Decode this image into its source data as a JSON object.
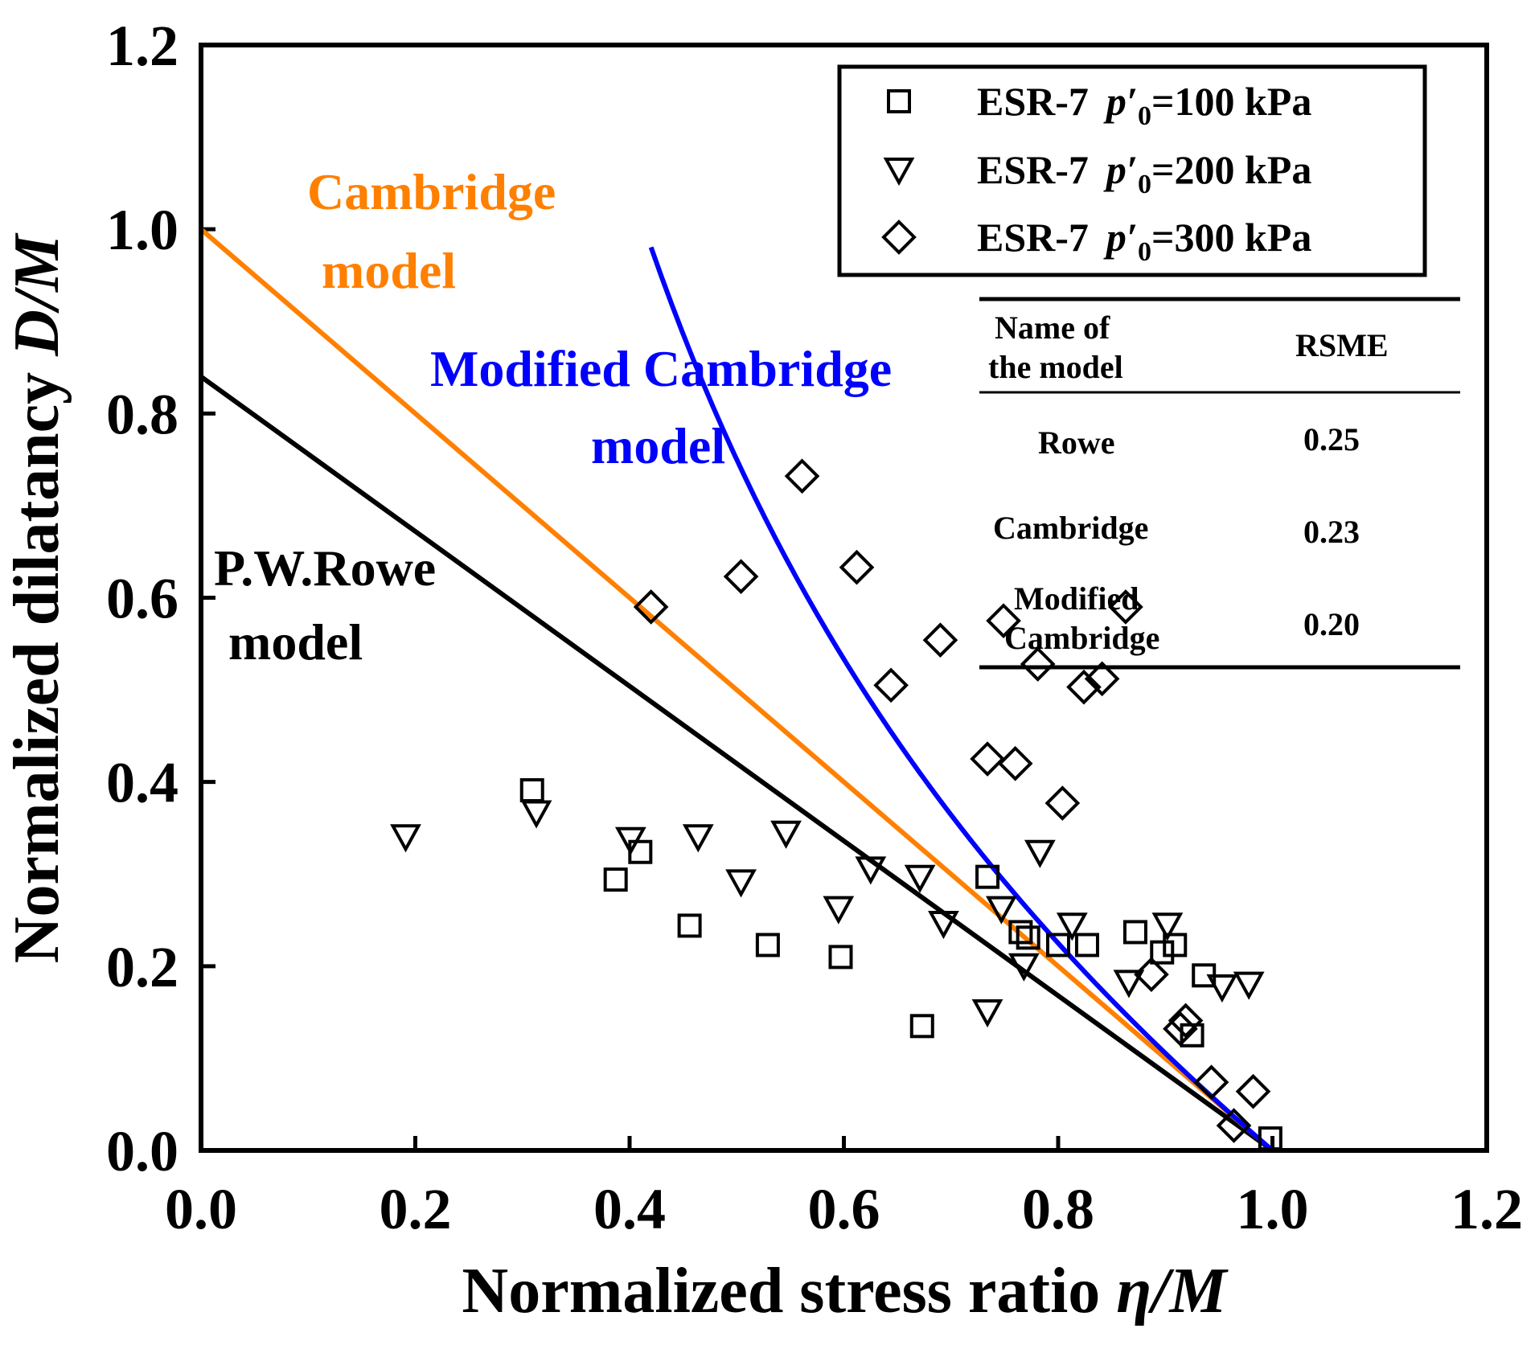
{
  "chart_data": {
    "type": "scatter",
    "xlabel": "Normalized stress ratio ",
    "xlabel_italic": "η/M",
    "ylabel": "Normalized dilatancy ",
    "ylabel_italic": "D/M",
    "xlim": [
      0,
      1.2
    ],
    "ylim": [
      0,
      1.2
    ],
    "xticks": [
      "0.0",
      "0.2",
      "0.4",
      "0.6",
      "0.8",
      "1.0",
      "1.2"
    ],
    "yticks": [
      "0.0",
      "0.2",
      "0.4",
      "0.6",
      "0.8",
      "1.0",
      "1.2"
    ],
    "grid": false,
    "legend_position": "top-right",
    "series": [
      {
        "name": "ESR-7 p'0=100 kPa",
        "label_prefix": "ESR-7",
        "label_p": "p′",
        "label_sub": "0",
        "label_suffix": "=100 kPa",
        "marker": "square",
        "color": "#000000",
        "x": [
          0.309,
          0.387,
          0.41,
          0.456,
          0.529,
          0.597,
          0.673,
          0.734,
          0.765,
          0.772,
          0.8,
          0.827,
          0.872,
          0.897,
          0.909,
          0.925,
          0.936,
          0.998
        ],
        "y": [
          0.391,
          0.294,
          0.324,
          0.244,
          0.223,
          0.21,
          0.135,
          0.297,
          0.237,
          0.231,
          0.223,
          0.223,
          0.237,
          0.215,
          0.223,
          0.125,
          0.19,
          0.013
        ]
      },
      {
        "name": "ESR-7 p'0=200 kPa",
        "label_prefix": "ESR-7",
        "label_p": "p′",
        "label_sub": "0",
        "label_suffix": "=200 kPa",
        "marker": "triangle-down",
        "color": "#000000",
        "x": [
          0.191,
          0.313,
          0.401,
          0.464,
          0.504,
          0.546,
          0.595,
          0.625,
          0.671,
          0.693,
          0.734,
          0.747,
          0.768,
          0.783,
          0.813,
          0.866,
          0.902,
          0.953,
          0.978
        ],
        "y": [
          0.341,
          0.367,
          0.338,
          0.341,
          0.292,
          0.345,
          0.263,
          0.306,
          0.297,
          0.247,
          0.151,
          0.263,
          0.201,
          0.324,
          0.245,
          0.183,
          0.245,
          0.178,
          0.181
        ]
      },
      {
        "name": "ESR-7 p'0=300 kPa",
        "label_prefix": "ESR-7",
        "label_p": "p′",
        "label_sub": "0",
        "label_suffix": "=300 kPa",
        "marker": "diamond",
        "color": "#000000",
        "x": [
          0.42,
          0.504,
          0.561,
          0.612,
          0.644,
          0.69,
          0.734,
          0.749,
          0.76,
          0.781,
          0.804,
          0.824,
          0.841,
          0.863,
          0.887,
          0.914,
          0.919,
          0.943,
          0.964,
          0.982
        ],
        "y": [
          0.59,
          0.623,
          0.732,
          0.633,
          0.505,
          0.554,
          0.425,
          0.575,
          0.42,
          0.528,
          0.377,
          0.503,
          0.512,
          0.59,
          0.191,
          0.132,
          0.141,
          0.074,
          0.027,
          0.064
        ]
      }
    ],
    "model_lines": [
      {
        "name": "P.W.Rowe model",
        "color": "#000000",
        "x": [
          0,
          1.0
        ],
        "y": [
          0.84,
          0
        ]
      },
      {
        "name": "Cambridge model",
        "color": "#ff8000",
        "x": [
          0,
          1.0
        ],
        "y": [
          1.0,
          0
        ]
      },
      {
        "name": "Modified Cambridge model",
        "color": "#0000ff",
        "formula": "(1-x^2)/(2x)",
        "x_range": [
          0.42,
          1.0
        ]
      }
    ],
    "annotations": {
      "cambridge": [
        "Cambridge",
        "model"
      ],
      "modified": [
        "Modified Cambridge",
        "model"
      ],
      "rowe": [
        "P.W.Rowe",
        "model"
      ]
    },
    "table": {
      "header": [
        "Name of",
        "the model",
        "RSME"
      ],
      "rows": [
        {
          "name": [
            "Rowe"
          ],
          "rsme": "0.25"
        },
        {
          "name": [
            "Cambridge"
          ],
          "rsme": "0.23"
        },
        {
          "name": [
            "Modified",
            "Cambridge"
          ],
          "rsme": "0.20"
        }
      ]
    }
  }
}
